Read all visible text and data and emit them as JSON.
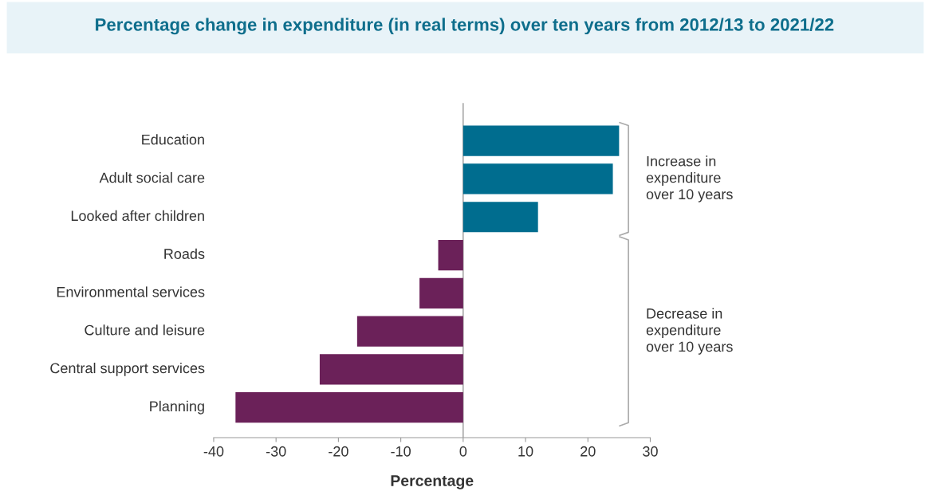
{
  "chart_data": {
    "type": "bar",
    "orientation": "horizontal",
    "title": "Percentage change in expenditure (in real terms) over ten years from 2012/13 to 2021/22",
    "xlabel": "Percentage",
    "categories": [
      "Education",
      "Adult social care",
      "Looked after children",
      "Roads",
      "Environmental services",
      "Culture and leisure",
      "Central support services",
      "Planning"
    ],
    "values": [
      25,
      24,
      12,
      -4,
      -7,
      -17,
      -23,
      -36.5
    ],
    "colors": [
      "#006d8f",
      "#006d8f",
      "#006d8f",
      "#6b2159",
      "#6b2159",
      "#6b2159",
      "#6b2159",
      "#6b2159"
    ],
    "xlim": [
      -40,
      30
    ],
    "xticks": [
      -40,
      -30,
      -20,
      -10,
      0,
      10,
      20,
      30
    ],
    "annotations": [
      "Increase in\nexpenditure\nover 10 years",
      "Decrease in\nexpenditure\nover 10 years"
    ],
    "ref_lines": [
      {
        "axis": "x",
        "value": 0,
        "color": "#999999"
      }
    ],
    "grid": false,
    "legend": false
  }
}
